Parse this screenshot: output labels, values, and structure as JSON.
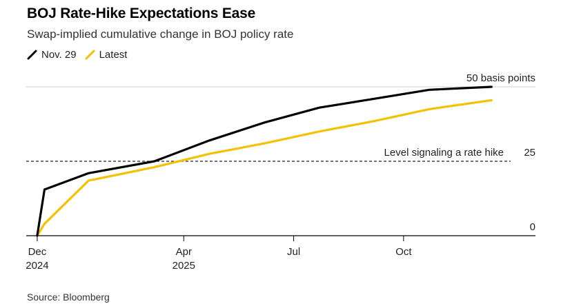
{
  "title": "BOJ Rate-Hike Expectations Ease",
  "subtitle": "Swap-implied cumulative change in BOJ policy rate",
  "source": "Source: Bloomberg",
  "colors": {
    "nov29": "#000000",
    "latest": "#f5c000",
    "grid": "#cfcfcf",
    "axis": "#000000"
  },
  "chart_data": {
    "type": "line",
    "title": "BOJ Rate-Hike Expectations Ease",
    "subtitle": "Swap-implied cumulative change in BOJ policy rate",
    "xlabel": "",
    "ylabel": "basis points",
    "x_unit": "months from Dec 2024",
    "xlim": [
      -0.3,
      13.6
    ],
    "ylim": [
      0,
      50
    ],
    "yticks": [
      {
        "value": 0,
        "label": "0"
      },
      {
        "value": 25,
        "label": "25"
      },
      {
        "value": 50,
        "label": "50 basis points"
      }
    ],
    "xticks": [
      {
        "value": 0,
        "label": "Dec",
        "sublabel": "2024"
      },
      {
        "value": 4,
        "label": "Apr",
        "sublabel": "2025"
      },
      {
        "value": 7,
        "label": "Jul",
        "sublabel": ""
      },
      {
        "value": 10,
        "label": "Oct",
        "sublabel": ""
      }
    ],
    "legend": "top-left",
    "series": [
      {
        "name": "Nov. 29",
        "color": "#000000",
        "x": [
          0,
          0.2,
          1.4,
          3.2,
          4.7,
          6.2,
          7.7,
          9.2,
          10.7,
          12.4
        ],
        "values": [
          0,
          15.5,
          21,
          25,
          32,
          38,
          43,
          46,
          49,
          50
        ]
      },
      {
        "name": "Latest",
        "color": "#f5c000",
        "x": [
          0,
          0.2,
          1.4,
          3.2,
          4.7,
          6.2,
          7.7,
          9.2,
          10.7,
          12.4
        ],
        "values": [
          0,
          4,
          18.5,
          23,
          27.5,
          31,
          35,
          38.5,
          42.5,
          45.5
        ]
      }
    ],
    "annotations": [
      {
        "text": "Level signaling a rate hike",
        "y": 25,
        "style": "dashed"
      }
    ]
  }
}
